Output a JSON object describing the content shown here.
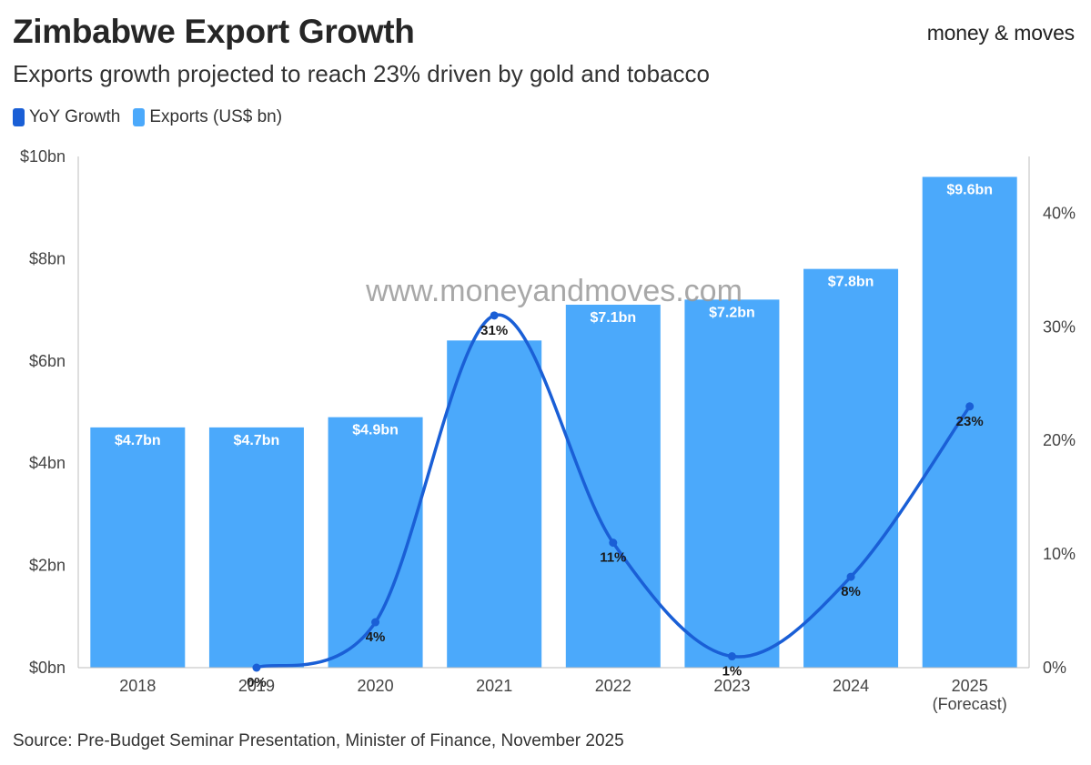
{
  "header": {
    "title": "Zimbabwe Export Growth",
    "subtitle": "Exports growth projected to reach 23% driven by gold and tobacco",
    "brand": "money & moves"
  },
  "watermark": "www.moneyandmoves.com",
  "source": "Source: Pre-Budget Seminar Presentation, Minister of Finance, November 2025",
  "colors": {
    "bars": "#4ba9fb",
    "line": "#1a5fd6"
  },
  "chart_data": {
    "type": "bar",
    "title": "Zimbabwe Export Growth",
    "categories": [
      "2018",
      "2019",
      "2020",
      "2021",
      "2022",
      "2023",
      "2024",
      "2025"
    ],
    "category_notes": [
      "",
      "",
      "",
      "",
      "",
      "",
      "",
      "(Forecast)"
    ],
    "series": [
      {
        "name": "Exports (US$ bn)",
        "type": "bar",
        "axis": "left",
        "values": [
          4.7,
          4.7,
          4.9,
          6.4,
          7.1,
          7.2,
          7.8,
          9.6
        ],
        "labels": [
          "$4.7bn",
          "$4.7bn",
          "$4.9bn",
          "",
          "$7.1bn",
          "$7.2bn",
          "$7.8bn",
          "$9.6bn"
        ]
      },
      {
        "name": "YoY Growth",
        "type": "line",
        "axis": "right",
        "values": [
          null,
          0,
          4,
          31,
          11,
          1,
          8,
          23
        ],
        "labels": [
          "",
          "0%",
          "4%",
          "31%",
          "11%",
          "1%",
          "8%",
          "23%"
        ]
      }
    ],
    "y_left": {
      "ylim": [
        0,
        10
      ],
      "ticks": [
        0,
        2,
        4,
        6,
        8,
        10
      ],
      "tick_labels": [
        "$0bn",
        "$2bn",
        "$4bn",
        "$6bn",
        "$8bn",
        "$10bn"
      ]
    },
    "y_right": {
      "ylim": [
        0,
        45
      ],
      "ticks": [
        0,
        10,
        20,
        30,
        40
      ],
      "tick_labels": [
        "0%",
        "10%",
        "20%",
        "30%",
        "40%"
      ]
    },
    "legend": [
      "YoY Growth",
      "Exports (US$ bn)"
    ],
    "legend_position": "top-left",
    "grid": false
  }
}
